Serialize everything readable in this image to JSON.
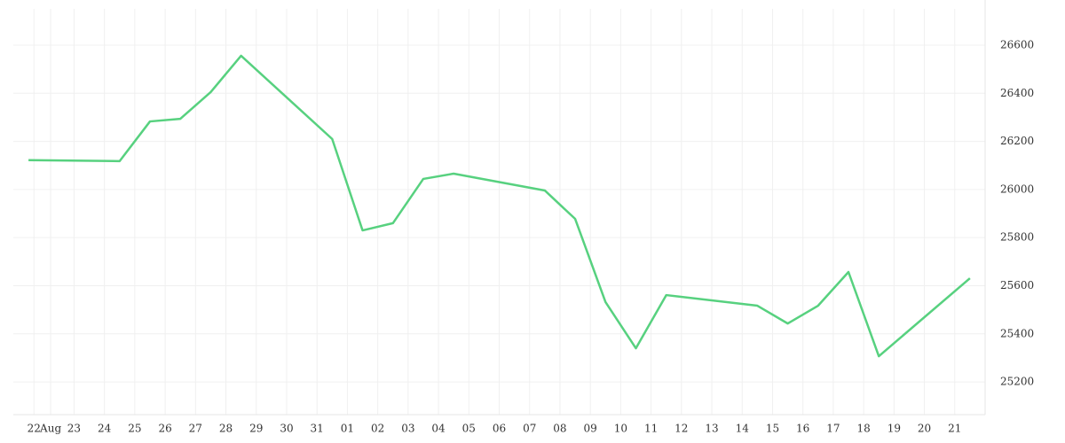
{
  "chart_data": {
    "type": "line",
    "x": [
      -0.5,
      2.5,
      3.5,
      4.5,
      5.5,
      6.5,
      9.5,
      10.5,
      11.5,
      12.5,
      13.5,
      16.5,
      17.5,
      18.5,
      19.5,
      20.5,
      23.5,
      24.5,
      25.5,
      26.5,
      27.5,
      30.5
    ],
    "series": [
      {
        "color": "#57d17f",
        "values": [
          26122,
          26118,
          26283,
          26294,
          26405,
          26556,
          26210,
          25830,
          25860,
          26044,
          26066,
          25996,
          25878,
          25532,
          25340,
          25561,
          25517,
          25443,
          25517,
          25657,
          25307,
          25631
        ]
      }
    ],
    "xlim": [
      -1,
      31
    ],
    "xticks": [
      {
        "value": -0.32,
        "label": "22"
      },
      {
        "value": 0.23,
        "label": "Aug"
      },
      {
        "value": 1,
        "label": "23"
      },
      {
        "value": 2,
        "label": "24"
      },
      {
        "value": 3,
        "label": "25"
      },
      {
        "value": 4,
        "label": "26"
      },
      {
        "value": 5,
        "label": "27"
      },
      {
        "value": 6,
        "label": "28"
      },
      {
        "value": 7,
        "label": "29"
      },
      {
        "value": 8,
        "label": "30"
      },
      {
        "value": 9,
        "label": "31"
      },
      {
        "value": 10,
        "label": "01"
      },
      {
        "value": 11,
        "label": "02"
      },
      {
        "value": 12,
        "label": "03"
      },
      {
        "value": 13,
        "label": "04"
      },
      {
        "value": 14,
        "label": "05"
      },
      {
        "value": 15,
        "label": "06"
      },
      {
        "value": 16,
        "label": "07"
      },
      {
        "value": 17,
        "label": "08"
      },
      {
        "value": 18,
        "label": "09"
      },
      {
        "value": 19,
        "label": "10"
      },
      {
        "value": 20,
        "label": "11"
      },
      {
        "value": 21,
        "label": "12"
      },
      {
        "value": 22,
        "label": "13"
      },
      {
        "value": 23,
        "label": "14"
      },
      {
        "value": 24,
        "label": "15"
      },
      {
        "value": 25,
        "label": "16"
      },
      {
        "value": 26,
        "label": "17"
      },
      {
        "value": 27,
        "label": "18"
      },
      {
        "value": 28,
        "label": "19"
      },
      {
        "value": 29,
        "label": "20"
      },
      {
        "value": 30,
        "label": "21"
      }
    ],
    "ylim": [
      25064,
      26751
    ],
    "yticks": [
      25200,
      25400,
      25600,
      25800,
      26000,
      26200,
      26400,
      26600
    ],
    "grid": true
  }
}
